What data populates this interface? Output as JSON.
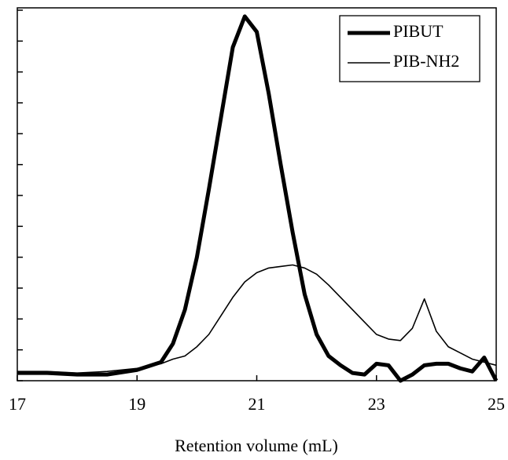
{
  "chart_data": {
    "type": "line",
    "x_label": "Retention volume (mL)",
    "x": [
      17,
      17.5,
      18,
      18.5,
      19,
      19.4,
      19.6,
      19.8,
      20.0,
      20.2,
      20.4,
      20.6,
      20.8,
      21.0,
      21.2,
      21.4,
      21.6,
      21.8,
      22.0,
      22.2,
      22.4,
      22.6,
      22.8,
      23.0,
      23.2,
      23.4,
      23.6,
      23.8,
      24.0,
      24.2,
      24.4,
      24.6,
      24.8,
      25.0
    ],
    "series": [
      {
        "name": "PIBUT",
        "color": "#000000",
        "width": 5,
        "values": [
          0.25,
          0.25,
          0.2,
          0.2,
          0.35,
          0.6,
          1.2,
          2.3,
          4.0,
          6.2,
          8.5,
          10.8,
          11.8,
          11.3,
          9.3,
          7.0,
          4.8,
          2.8,
          1.5,
          0.8,
          0.5,
          0.25,
          0.2,
          0.55,
          0.5,
          0,
          0.2,
          0.5,
          0.55,
          0.55,
          0.4,
          0.3,
          0.75,
          0
        ]
      },
      {
        "name": "PIB-NH2",
        "color": "#000000",
        "width": 1.6,
        "values": [
          0.3,
          0.3,
          0.25,
          0.3,
          0.4,
          0.55,
          0.7,
          0.8,
          1.1,
          1.5,
          2.1,
          2.7,
          3.2,
          3.5,
          3.65,
          3.7,
          3.75,
          3.65,
          3.45,
          3.1,
          2.7,
          2.3,
          1.9,
          1.5,
          1.35,
          1.3,
          1.7,
          2.65,
          1.6,
          1.1,
          0.9,
          0.7,
          0.6,
          0.5
        ]
      }
    ],
    "xlim": [
      17,
      25
    ],
    "xticks": [
      17,
      19,
      21,
      23,
      25
    ],
    "ylim": [
      0,
      12
    ],
    "yticks": [
      0,
      1,
      2,
      3,
      4,
      5,
      6,
      7,
      8,
      9,
      10,
      11,
      12
    ],
    "ytick_labels": false,
    "grid": false,
    "legend": "upper-right"
  }
}
